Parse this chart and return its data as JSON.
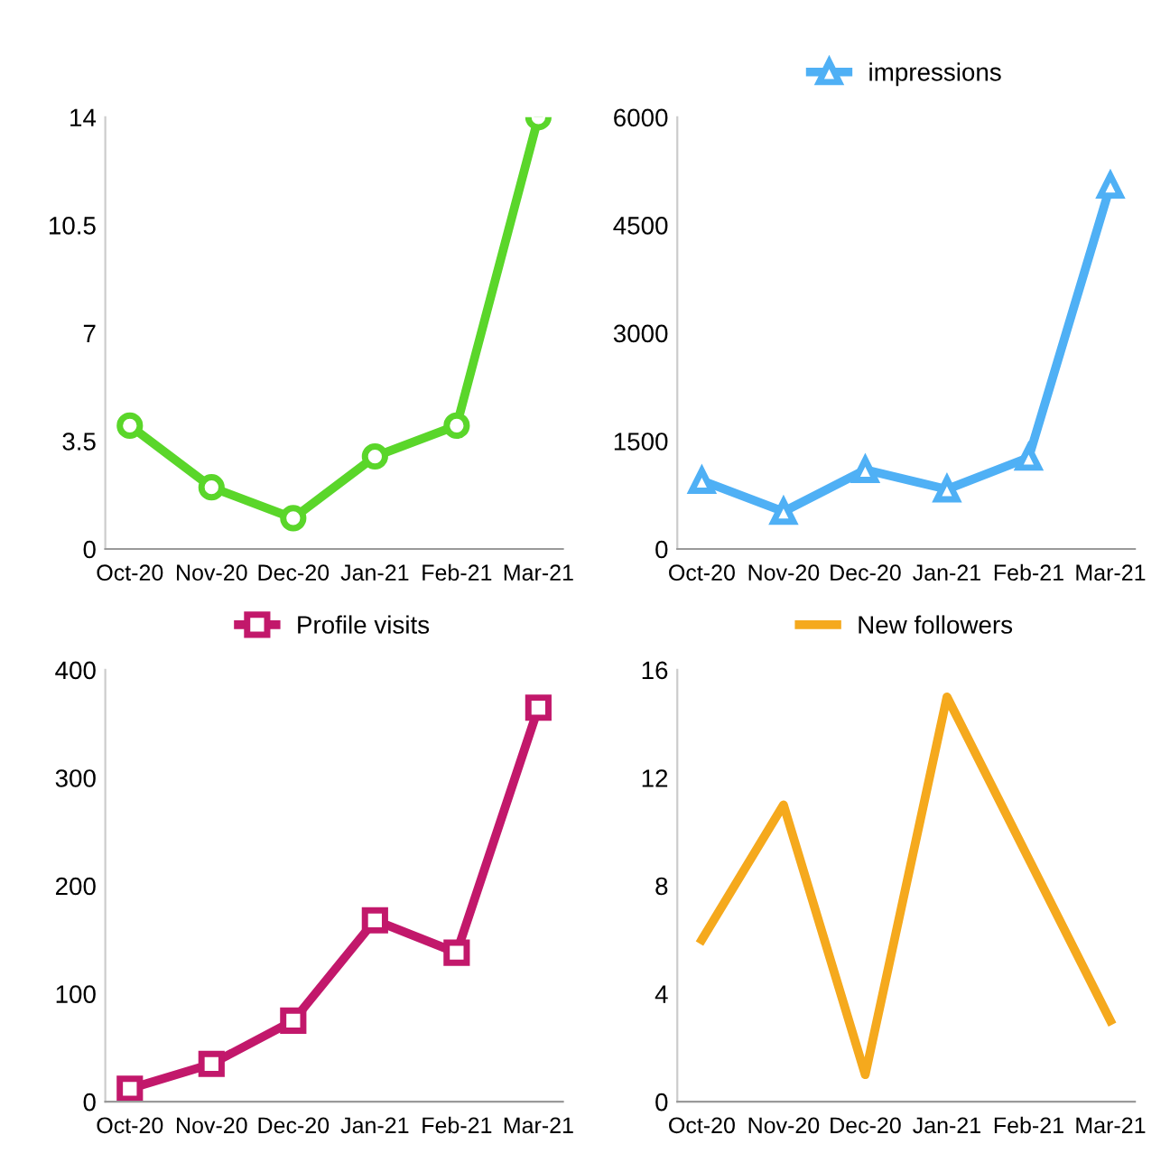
{
  "chart_data": [
    {
      "type": "line",
      "categories": [
        "Oct-20",
        "Nov-20",
        "Dec-20",
        "Jan-21",
        "Feb-21",
        "Mar-21"
      ],
      "series": [
        {
          "color": "#5ad62a",
          "values": [
            4,
            2,
            1,
            3,
            4,
            14
          ]
        }
      ],
      "ylim": [
        0,
        14
      ],
      "yticks": [
        0,
        3.5,
        7,
        10.5,
        14
      ],
      "marker": "circle",
      "grid": false
    },
    {
      "type": "line",
      "categories": [
        "Oct-20",
        "Nov-20",
        "Dec-20",
        "Jan-21",
        "Feb-21",
        "Mar-21"
      ],
      "series": [
        {
          "name": "impressions",
          "color": "#4fb0f5",
          "values": [
            950,
            520,
            1100,
            830,
            1270,
            5050
          ]
        }
      ],
      "ylim": [
        0,
        6000
      ],
      "yticks": [
        0,
        1500,
        3000,
        4500,
        6000
      ],
      "marker": "triangle",
      "legend": "top",
      "grid": false
    },
    {
      "type": "line",
      "categories": [
        "Oct-20",
        "Nov-20",
        "Dec-20",
        "Jan-21",
        "Feb-21",
        "Mar-21"
      ],
      "series": [
        {
          "name": "Profile visits",
          "color": "#c2186b",
          "values": [
            12,
            35,
            75,
            168,
            138,
            365
          ]
        }
      ],
      "ylim": [
        0,
        400
      ],
      "yticks": [
        0,
        100,
        200,
        300,
        400
      ],
      "marker": "square",
      "legend": "top",
      "grid": false
    },
    {
      "type": "line",
      "categories": [
        "Oct-20",
        "Nov-20",
        "Dec-20",
        "Jan-21",
        "Feb-21",
        "Mar-21"
      ],
      "series": [
        {
          "name": "New followers",
          "color": "#f5a91d",
          "values": [
            6,
            11,
            1,
            15,
            9,
            3
          ]
        }
      ],
      "ylim": [
        0,
        16
      ],
      "yticks": [
        0,
        4,
        8,
        12,
        16
      ],
      "marker": "none",
      "legend": "top",
      "grid": false
    }
  ]
}
